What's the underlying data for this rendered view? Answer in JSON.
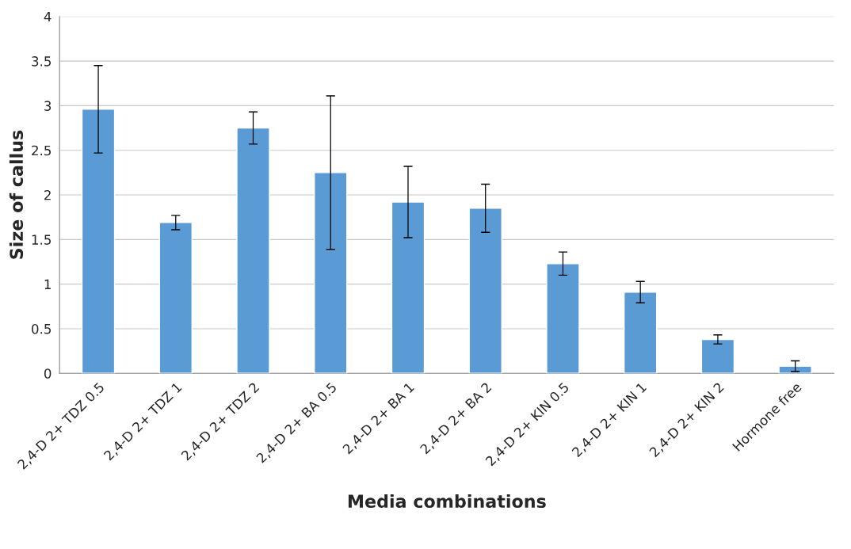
{
  "chart_data": {
    "type": "bar",
    "xlabel": "Media combinations",
    "ylabel": "Size of callus",
    "categories": [
      "2,4-D 2+ TDZ 0.5",
      "2,4-D 2+ TDZ 1",
      "2,4-D 2+ TDZ 2",
      "2,4-D 2+ BA 0.5",
      "2,4-D 2+ BA 1",
      "2,4-D 2+ BA 2",
      "2,4-D 2+ KIN 0.5",
      "2,4-D 2+ KIN 1",
      "2,4-D 2+ KIN 2",
      "Hormone free"
    ],
    "values": [
      2.96,
      1.69,
      2.75,
      2.25,
      1.92,
      1.85,
      1.23,
      0.91,
      0.38,
      0.08
    ],
    "errors": [
      0.49,
      0.08,
      0.18,
      0.86,
      0.4,
      0.27,
      0.13,
      0.12,
      0.05,
      0.06
    ],
    "color": "#5b9bd5",
    "ylim": [
      0,
      4
    ],
    "yticks": [
      0,
      0.5,
      1,
      1.5,
      2,
      2.5,
      3,
      3.5,
      4
    ],
    "grid": "y"
  }
}
